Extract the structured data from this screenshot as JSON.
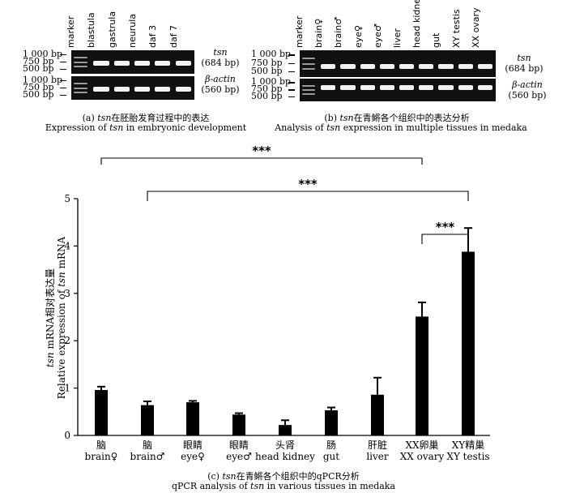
{
  "panel_a": {
    "lanes": [
      "marker",
      "blastula",
      "gastrula",
      "neurula",
      "daf 3",
      "daf 7"
    ],
    "bp_top": [
      "1 000 bp",
      "750 bp",
      "500 bp"
    ],
    "bp_bottom": [
      "1 000 bp",
      "750 bp",
      "500 bp"
    ],
    "gene_top": "tsn",
    "gene_top_size": "(684 bp)",
    "gene_bottom": "β-actin",
    "gene_bottom_size": "(560 bp)",
    "caption_cn_label": "(a)",
    "caption_cn_gene": "tsn",
    "caption_cn_rest": "在胚胎发育过程中的表达",
    "caption_en_pre": "Expression of",
    "caption_en_gene": "tsn",
    "caption_en_post": "in embryonic development"
  },
  "panel_b": {
    "lanes": [
      "marker",
      "brain♀",
      "brain♂",
      "eye♀",
      "eye♂",
      "liver",
      "head kidney",
      "gut",
      "XY testis",
      "XX ovary"
    ],
    "bp_top": [
      "1 000 bp",
      "750 bp",
      "500 bp"
    ],
    "bp_bottom": [
      "1 000 bp",
      "750 bp",
      "500 bp"
    ],
    "gene_top": "tsn",
    "gene_top_size": "(684 bp)",
    "gene_bottom": "β-actin",
    "gene_bottom_size": "(560 bp)",
    "caption_cn_label": "(b)",
    "caption_cn_gene": "tsn",
    "caption_cn_rest": "在青鳉各个组织中的表达分析",
    "caption_en_pre": "Analysis of",
    "caption_en_gene": "tsn",
    "caption_en_post": "expression in multiple tissues in medaka"
  },
  "panel_c": {
    "caption_cn_label": "(c)",
    "caption_cn_gene": "tsn",
    "caption_cn_rest": "在青鳉各个组织中的qPCR分析",
    "caption_en_pre": "qPCR analysis of",
    "caption_en_gene": "tsn",
    "caption_en_post": "in various tissues in medaka"
  },
  "chart_data": {
    "type": "bar",
    "categories_cn": [
      "脑",
      "脑",
      "眼睛",
      "眼睛",
      "头肾",
      "肠",
      "肝脏",
      "XX卵巢",
      "XY精巢"
    ],
    "categories": [
      "brain♀",
      "brain♂",
      "eye♀",
      "eye♂",
      "head kidney",
      "gut",
      "liver",
      "XX ovary",
      "XY testis"
    ],
    "values": [
      0.96,
      0.64,
      0.7,
      0.44,
      0.22,
      0.53,
      0.86,
      2.51,
      3.88
    ],
    "errors": [
      0.07,
      0.08,
      0.03,
      0.03,
      0.1,
      0.06,
      0.36,
      0.3,
      0.5
    ],
    "ylabel_cn_gene": "tsn",
    "ylabel_cn_rest": " mRNA相对表达量",
    "ylabel_en_pre": "Relative expression of ",
    "ylabel_en_gene": "tsn",
    "ylabel_en_post": " mRNA",
    "ylim": [
      0,
      5
    ],
    "yticks": [
      "0",
      "1",
      "2",
      "3",
      "4",
      "5"
    ],
    "grid": false,
    "significance": [
      {
        "from": "brain♀",
        "to": "XX ovary",
        "label": "***"
      },
      {
        "from": "brain♂",
        "to": "XY testis",
        "label": "***"
      },
      {
        "from": "XX ovary",
        "to": "XY testis",
        "label": "***"
      }
    ]
  }
}
